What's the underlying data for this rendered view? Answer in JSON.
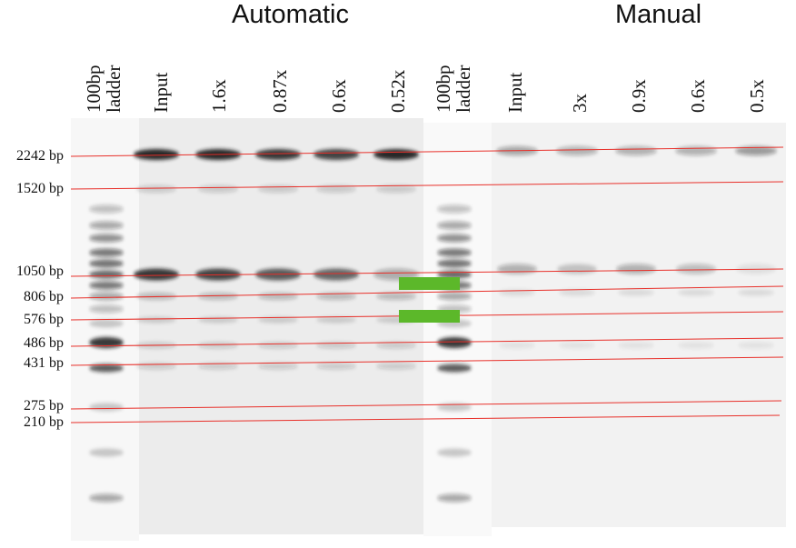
{
  "headers": {
    "automatic": "Automatic",
    "manual": "Manual"
  },
  "lanes": [
    {
      "label": "100bp\nladder",
      "group": "automatic"
    },
    {
      "label": "Input",
      "group": "automatic"
    },
    {
      "label": "1.6x",
      "group": "automatic"
    },
    {
      "label": "0.87x",
      "group": "automatic"
    },
    {
      "label": "0.6x",
      "group": "automatic"
    },
    {
      "label": "0.52x",
      "group": "automatic"
    },
    {
      "label": "100bp\nladder",
      "group": "manual"
    },
    {
      "label": "Input",
      "group": "manual"
    },
    {
      "label": "3x",
      "group": "manual"
    },
    {
      "label": "0.9x",
      "group": "manual"
    },
    {
      "label": "0.6x",
      "group": "manual"
    },
    {
      "label": "0.5x",
      "group": "manual"
    }
  ],
  "size_markers": [
    "2242 bp",
    "1520 bp",
    "1050 bp",
    "806 bp",
    "576 bp",
    "486 bp",
    "431 bp",
    "275 bp",
    "210 bp"
  ],
  "colors": {
    "guide_line": "#e8302a",
    "highlight": "#5cb82a",
    "gel_background": "#f0f0f0",
    "band": "#1a1a1a"
  }
}
